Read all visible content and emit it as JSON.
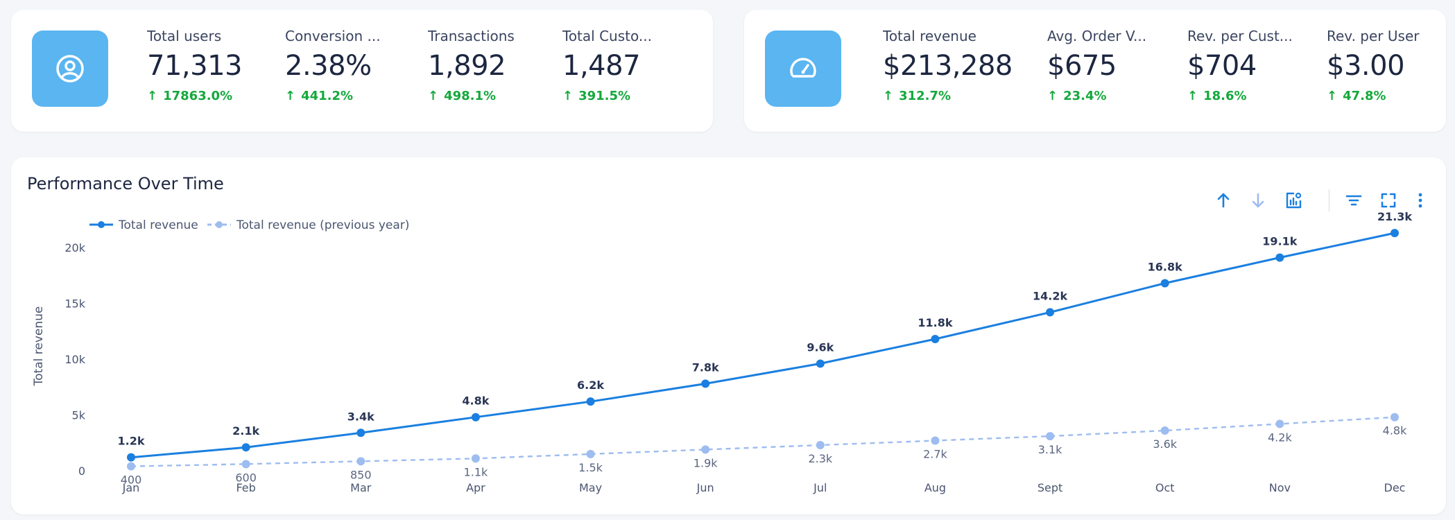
{
  "kpi_users": {
    "icon": "user-circle-icon",
    "metrics": [
      {
        "label": "Total users",
        "value": "71,313",
        "delta": "17863.0%"
      },
      {
        "label": "Conversion ...",
        "value": "2.38%",
        "delta": "441.2%"
      },
      {
        "label": "Transactions",
        "value": "1,892",
        "delta": "498.1%"
      },
      {
        "label": "Total Custo...",
        "value": "1,487",
        "delta": "391.5%"
      }
    ]
  },
  "kpi_revenue": {
    "icon": "speedometer-icon",
    "metrics": [
      {
        "label": "Total revenue",
        "value": "$213,288",
        "delta": "312.7%"
      },
      {
        "label": "Avg. Order V...",
        "value": "$675",
        "delta": "23.4%"
      },
      {
        "label": "Rev. per Cust...",
        "value": "$704",
        "delta": "18.6%"
      },
      {
        "label": "Rev. per User",
        "value": "$3.00",
        "delta": "47.8%"
      }
    ]
  },
  "colors": {
    "accent": "#1a7fe0",
    "accent_light": "#9dbcf0",
    "tile": "#5ab5f0",
    "positive": "#14a83c"
  },
  "chart_panel": {
    "title": "Performance Over Time",
    "toolbar": [
      "sort-ascending-icon",
      "sort-descending-icon",
      "chart-settings-icon",
      "filter-icon",
      "fullscreen-icon",
      "more-vertical-icon"
    ]
  },
  "chart_data": {
    "type": "line",
    "categories": [
      "Jan",
      "Feb",
      "Mar",
      "Apr",
      "May",
      "Jun",
      "Jul",
      "Aug",
      "Sept",
      "Oct",
      "Nov",
      "Dec"
    ],
    "series": [
      {
        "name": "Total revenue",
        "style": "solid",
        "values": [
          1200,
          2100,
          3400,
          4800,
          6200,
          7800,
          9600,
          11800,
          14200,
          16800,
          19100,
          21300
        ],
        "labels": [
          "1.2k",
          "2.1k",
          "3.4k",
          "4.8k",
          "6.2k",
          "7.8k",
          "9.6k",
          "11.8k",
          "14.2k",
          "16.8k",
          "19.1k",
          "21.3k"
        ]
      },
      {
        "name": "Total revenue (previous year)",
        "style": "dashed",
        "values": [
          400,
          600,
          850,
          1100,
          1500,
          1900,
          2300,
          2700,
          3100,
          3600,
          4200,
          4800
        ],
        "labels": [
          "400",
          "600",
          "850",
          "1.1k",
          "1.5k",
          "1.9k",
          "2.3k",
          "2.7k",
          "3.1k",
          "3.6k",
          "4.2k",
          "4.8k"
        ]
      }
    ],
    "ylabel": "Total revenue",
    "xlabel": "",
    "ylim": [
      0,
      20000
    ],
    "yticks": [
      0,
      5000,
      10000,
      15000,
      20000
    ],
    "ytick_labels": [
      "0",
      "5k",
      "10k",
      "15k",
      "20k"
    ],
    "grid": false,
    "legend": "top-left"
  }
}
